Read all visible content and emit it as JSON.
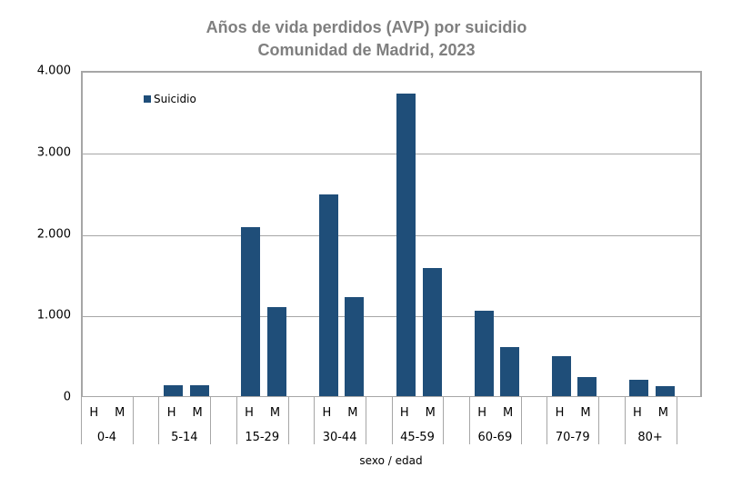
{
  "chart_data": {
    "type": "bar",
    "title": "Años de vida perdidos (AVP) por suicidio",
    "subtitle": "Comunidad de Madrid, 2023",
    "xlabel": "sexo / edad",
    "ylabel": "",
    "ylim": [
      0,
      4000
    ],
    "yticks": [
      "0",
      "1.000",
      "2.000",
      "3.000",
      "4.000"
    ],
    "grid": true,
    "legend_position": "top-left inside",
    "legend": [
      "Suicidio"
    ],
    "age_groups": [
      "0-4",
      "5-14",
      "15-29",
      "30-44",
      "45-59",
      "60-69",
      "70-79",
      "80+"
    ],
    "sex_labels": [
      "H",
      "M"
    ],
    "categories": [
      "0-4 H",
      "0-4 M",
      "5-14 H",
      "5-14 M",
      "15-29 H",
      "15-29 M",
      "30-44 H",
      "30-44 M",
      "45-59 H",
      "45-59 M",
      "60-69 H",
      "60-69 M",
      "70-79 H",
      "70-79 M",
      "80+ H",
      "80+ M"
    ],
    "series": [
      {
        "name": "Suicidio",
        "color": "#1f4e79",
        "values": [
          0,
          0,
          145,
          145,
          2085,
          1105,
          2485,
          1225,
          3725,
          1585,
          1060,
          615,
          500,
          245,
          215,
          135
        ]
      }
    ]
  },
  "colors": {
    "bar": "#1f4e79",
    "title": "#7f7f7f",
    "grid": "#a6a6a6"
  }
}
